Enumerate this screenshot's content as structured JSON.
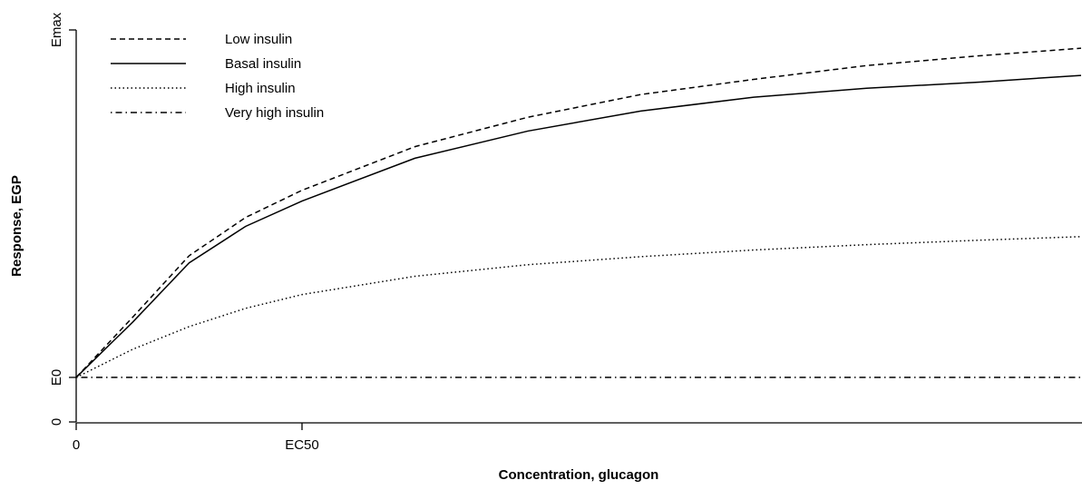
{
  "chart_data": {
    "type": "line",
    "x_label": "Concentration, glucagon",
    "y_label": "Response, EGP",
    "x": [
      0,
      0.25,
      0.5,
      0.75,
      1,
      1.5,
      2,
      2.5,
      3,
      3.5,
      4,
      4.45
    ],
    "xlim": [
      0,
      4.45
    ],
    "xticks": [
      0,
      {
        "value": 1,
        "label": "EC50"
      }
    ],
    "ylim": [
      0,
      88
    ],
    "yticks": [
      0,
      {
        "value": 10,
        "label": "E0"
      },
      {
        "value": 88,
        "label": "Emax"
      }
    ],
    "legend": "top-left",
    "series": [
      {
        "name": "Low insulin",
        "color": "#000000",
        "linestyle": "dashed",
        "values": [
          10,
          23.5,
          37.3,
          45.9,
          52.0,
          61.8,
          68.4,
          73.5,
          76.9,
          80.0,
          82.2,
          83.9
        ]
      },
      {
        "name": "Basal insulin",
        "color": "#000000",
        "linestyle": "solid",
        "values": [
          10,
          22.4,
          35.7,
          43.9,
          49.6,
          59.2,
          65.3,
          69.8,
          72.9,
          74.9,
          76.3,
          77.8
        ]
      },
      {
        "name": "High insulin",
        "color": "#000000",
        "linestyle": "dotted",
        "values": [
          10,
          16.3,
          21.4,
          25.5,
          28.6,
          32.7,
          35.3,
          37.1,
          38.6,
          39.8,
          40.8,
          41.6
        ]
      },
      {
        "name": "Very high insulin",
        "color": "#000000",
        "linestyle": "dotdash",
        "values": [
          10,
          10,
          10,
          10,
          10,
          10,
          10,
          10,
          10,
          10,
          10,
          10
        ]
      }
    ]
  }
}
